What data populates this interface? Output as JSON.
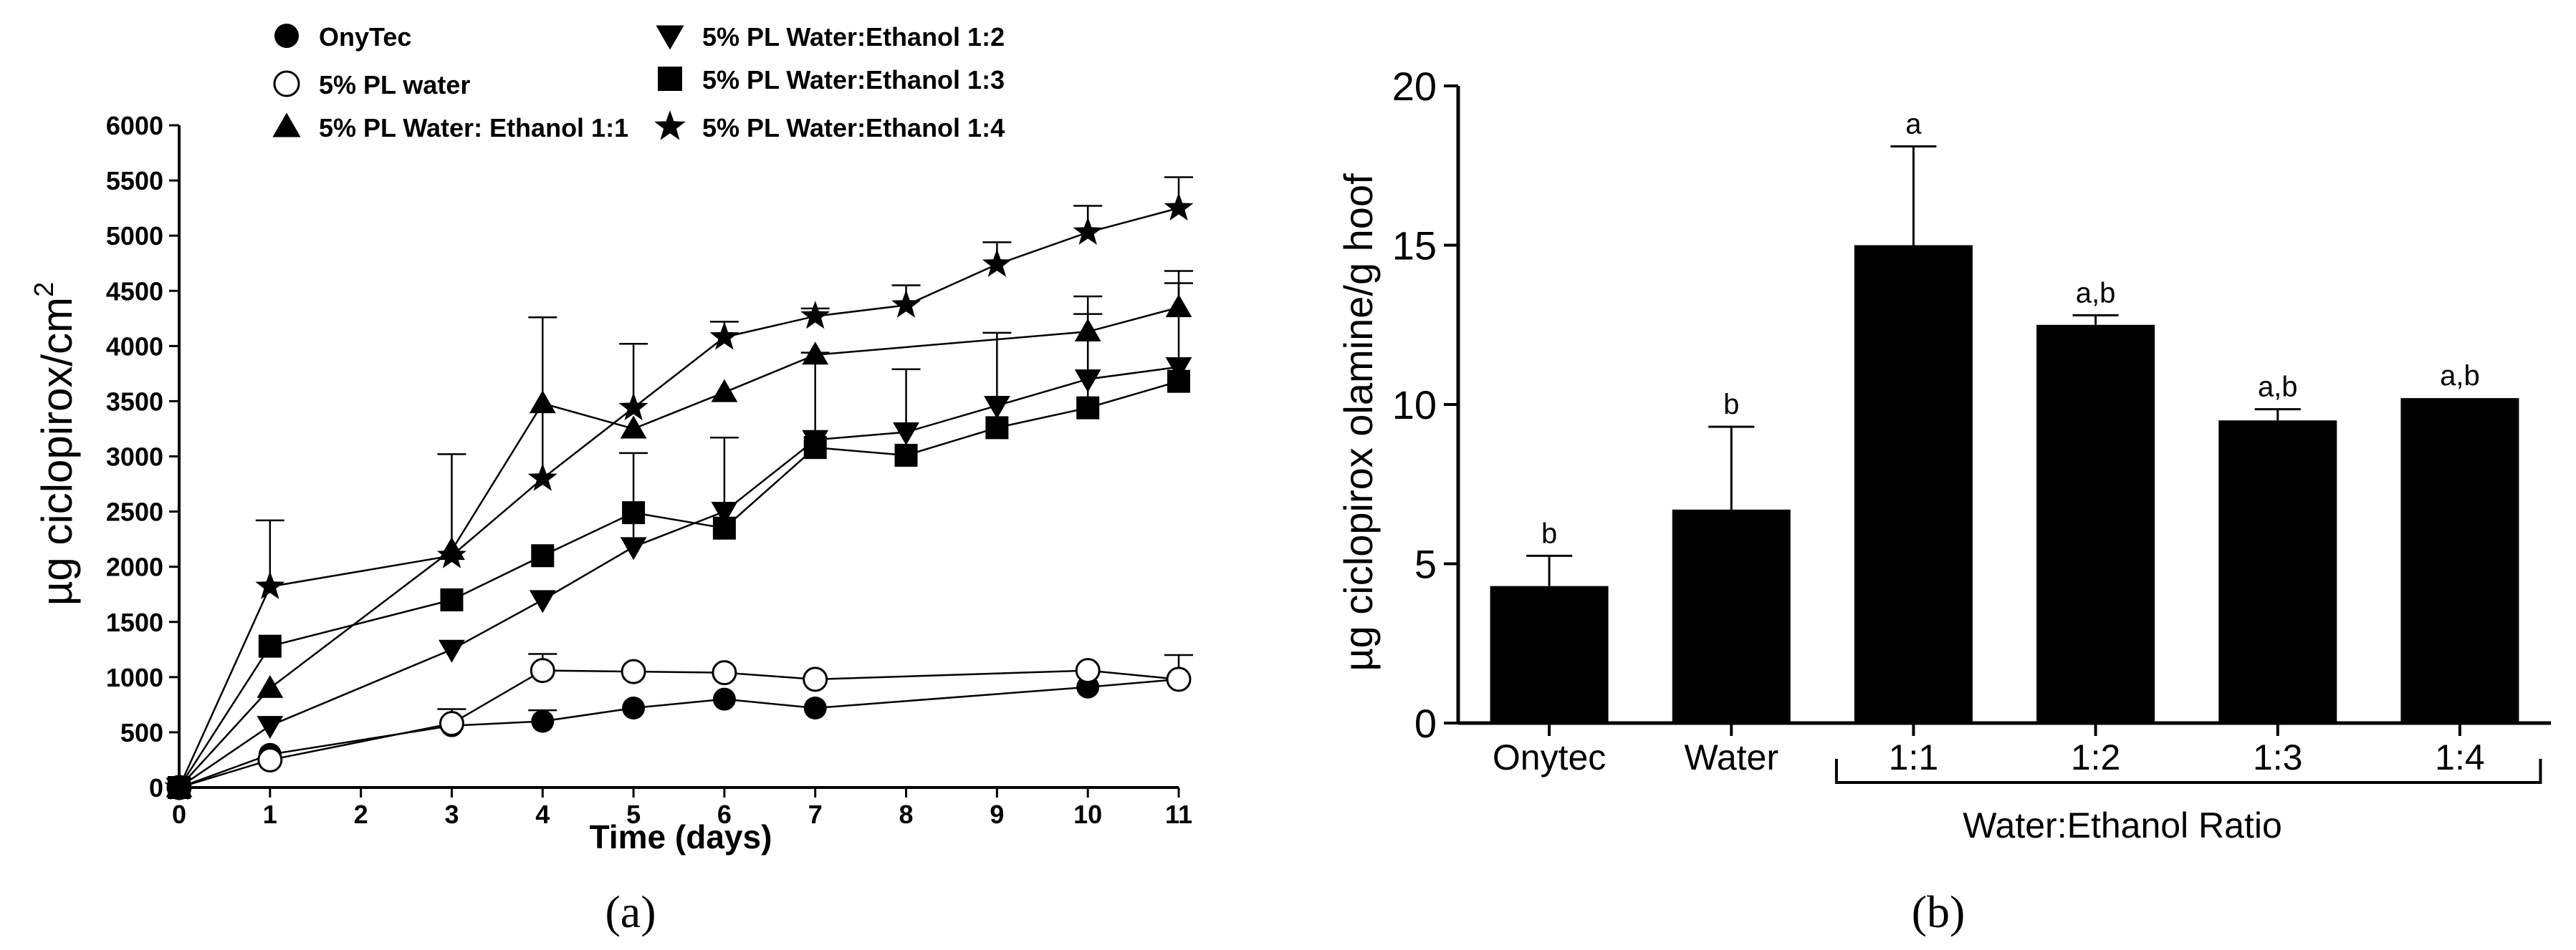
{
  "chart_data": [
    {
      "panel": "(a)",
      "type": "line",
      "xlabel": "Time (days)",
      "ylabel": "µg ciclopirox/cm",
      "ylabel_superscript": "2",
      "xlim": [
        0,
        11
      ],
      "ylim": [
        0,
        6000
      ],
      "xticks": [
        0,
        1,
        2,
        3,
        4,
        5,
        6,
        7,
        8,
        9,
        10,
        11
      ],
      "yticks": [
        0,
        500,
        1000,
        1500,
        2000,
        2500,
        3000,
        3500,
        4000,
        4500,
        5000,
        5500,
        6000
      ],
      "series": [
        {
          "name": "OnyTec",
          "marker": "circle-filled",
          "x": [
            0,
            1,
            3,
            4,
            5,
            6,
            7,
            10,
            11
          ],
          "y": [
            0,
            300,
            560,
            600,
            720,
            800,
            720,
            910,
            980
          ],
          "err": [
            0,
            0,
            150,
            100,
            0,
            0,
            0,
            0,
            0
          ]
        },
        {
          "name": "5% PL water",
          "marker": "circle-open",
          "x": [
            0,
            1,
            3,
            4,
            5,
            6,
            7,
            10,
            11
          ],
          "y": [
            0,
            250,
            580,
            1060,
            1050,
            1040,
            980,
            1060,
            980
          ],
          "err": [
            0,
            0,
            0,
            150,
            0,
            0,
            0,
            0,
            220
          ]
        },
        {
          "name": "5% PL Water: Ethanol 1:1",
          "marker": "triangle-up",
          "x": [
            0,
            1,
            3,
            4,
            5,
            6,
            7,
            10,
            11
          ],
          "y": [
            0,
            900,
            2150,
            3480,
            3250,
            3580,
            3920,
            4130,
            4350
          ],
          "err": [
            0,
            0,
            0,
            0,
            0,
            0,
            0,
            320,
            220
          ]
        },
        {
          "name": "5% PL Water:Ethanol 1:2",
          "marker": "triangle-down",
          "x": [
            0,
            1,
            3,
            4,
            5,
            6,
            7,
            8,
            9,
            10,
            11
          ],
          "y": [
            0,
            560,
            1250,
            1700,
            2180,
            2500,
            3150,
            3220,
            3460,
            3700,
            3810
          ],
          "err": [
            0,
            0,
            0,
            0,
            850,
            0,
            0,
            0,
            0,
            0,
            0
          ]
        },
        {
          "name": "5% PL Water:Ethanol 1:3",
          "marker": "square",
          "x": [
            0,
            1,
            3,
            4,
            5,
            6,
            7,
            8,
            9,
            10,
            11
          ],
          "y": [
            0,
            1280,
            1700,
            2100,
            2490,
            2350,
            3080,
            3010,
            3260,
            3440,
            3680
          ],
          "err": [
            0,
            0,
            0,
            0,
            0,
            820,
            860,
            780,
            860,
            850,
            1000
          ]
        },
        {
          "name": "5% PL Water:Ethanol 1:4",
          "marker": "star",
          "x": [
            0,
            1,
            3,
            4,
            5,
            6,
            7,
            8,
            9,
            10,
            11
          ],
          "y": [
            0,
            1820,
            2100,
            2800,
            3440,
            4080,
            4270,
            4370,
            4740,
            5030,
            5250
          ],
          "err": [
            0,
            600,
            920,
            1460,
            580,
            140,
            70,
            180,
            200,
            240,
            280
          ]
        }
      ]
    },
    {
      "panel": "(b)",
      "type": "bar",
      "ylabel": "µg ciclopirox olamine/g hoof",
      "ylim": [
        0,
        20
      ],
      "yticks": [
        0,
        5,
        10,
        15,
        20
      ],
      "categories": [
        "Onytec",
        "Water",
        "1:1",
        "1:2",
        "1:3",
        "1:4"
      ],
      "values": [
        4.3,
        6.7,
        15.0,
        12.5,
        9.5,
        10.2
      ],
      "err": [
        0.95,
        2.6,
        3.1,
        0.3,
        0.35,
        0
      ],
      "significance": [
        "b",
        "b",
        "a",
        "a,b",
        "a,b",
        "a,b"
      ],
      "group_label": "Water:Ethanol Ratio"
    }
  ]
}
